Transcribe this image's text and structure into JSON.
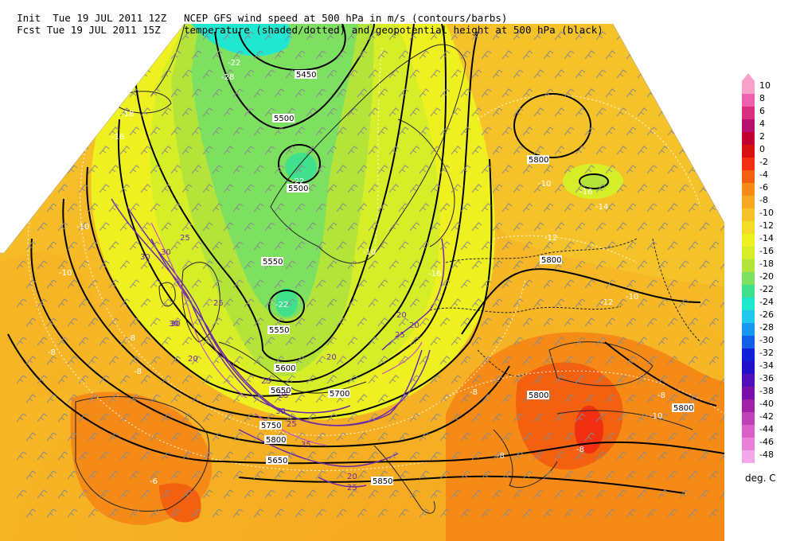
{
  "header": {
    "line1_left": "Init  Tue 19 JUL 2011 12Z",
    "line1_right": "NCEP GFS wind speed at 500 hPa in m/s (contours/barbs)",
    "line2_left": "Fcst Tue 19 JUL 2011 15Z",
    "line2_right": "temperature (shaded/dotted) and geopotential height at 500 hPa (black)"
  },
  "legend": {
    "ticks": [
      "10",
      "8",
      "6",
      "4",
      "2",
      "0",
      "-2",
      "-4",
      "-6",
      "-8",
      "-10",
      "-12",
      "-14",
      "-16",
      "-18",
      "-20",
      "-22",
      "-24",
      "-26",
      "-28",
      "-30",
      "-32",
      "-34",
      "-36",
      "-38",
      "-40",
      "-42",
      "-44",
      "-46",
      "-48"
    ],
    "colors": [
      "#f7a0c8",
      "#f060b0",
      "#d8307f",
      "#b81070",
      "#c00030",
      "#d81010",
      "#f03010",
      "#f26010",
      "#f68a16",
      "#f6a820",
      "#f6c22a",
      "#f2dc28",
      "#eef020",
      "#d6ee28",
      "#b4e43a",
      "#7ee060",
      "#40e08c",
      "#20e8d0",
      "#20c8f0",
      "#1898f0",
      "#1060e8",
      "#1020d8",
      "#2010c8",
      "#5010b8",
      "#7a10a8",
      "#a020a8",
      "#c040b8",
      "#d860c8",
      "#e880d8",
      "#f4a8ec"
    ],
    "units": "deg. C"
  },
  "map": {
    "height_labels": [
      "5450",
      "5500",
      "5500",
      "5550",
      "5550",
      "5600",
      "5650",
      "5700",
      "5750",
      "5800",
      "5650",
      "5800",
      "5800",
      "5800",
      "5800",
      "5850"
    ],
    "temp_labels": [
      "-22",
      "-28",
      "-18",
      "-16",
      "-16",
      "-10",
      "-8",
      "-8",
      "-8",
      "-6",
      "-10",
      "-14",
      "-12",
      "-12",
      "-10",
      "-10",
      "-16",
      "-22",
      "-22",
      "-10",
      "-8",
      "-8",
      "-8",
      "-8",
      "-10"
    ],
    "wind_labels": [
      "25",
      "30",
      "30",
      "25",
      "20",
      "25",
      "20",
      "25",
      "25",
      "30",
      "35",
      "20",
      "25",
      "30",
      "30",
      "25",
      "20",
      "20"
    ]
  }
}
